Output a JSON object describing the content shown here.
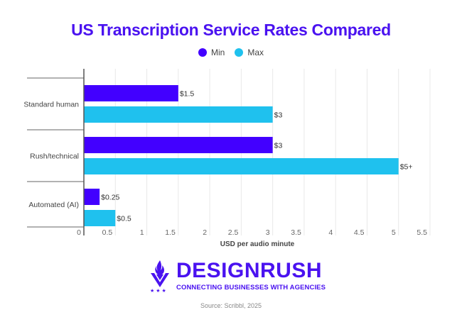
{
  "chart_data": {
    "type": "bar",
    "orientation": "horizontal",
    "title": "US Transcription Service Rates Compared",
    "categories": [
      "Standard human",
      "Rush/technical",
      "Automated (AI)"
    ],
    "series": [
      {
        "name": "Min",
        "color": "#4200ff",
        "values": [
          1.5,
          3,
          0.25
        ],
        "labels": [
          "$1.5",
          "$3",
          "$0.25"
        ]
      },
      {
        "name": "Max",
        "color": "#1fc1ee",
        "values": [
          3,
          5,
          0.5
        ],
        "labels": [
          "$3",
          "$5+",
          "$0.5"
        ]
      }
    ],
    "xlabel": "USD per audio minute",
    "ylabel": "",
    "xlim": [
      0,
      5.5
    ],
    "xticks": [
      0,
      0.5,
      1,
      1.5,
      2,
      2.5,
      3,
      3.5,
      4,
      4.5,
      5,
      5.5
    ],
    "xtick_labels": [
      "0",
      "0.5",
      "1",
      "1.5",
      "2",
      "2.5",
      "3",
      "3.5",
      "4",
      "4.5",
      "5",
      "5.5"
    ],
    "grid": true,
    "legend": "top-center"
  },
  "branding": {
    "name": "DESIGNRUSH",
    "tagline": "CONNECTING BUSINESSES WITH AGENCIES",
    "accent": "#4a12f0"
  },
  "source": "Source: Scribbl, 2025"
}
